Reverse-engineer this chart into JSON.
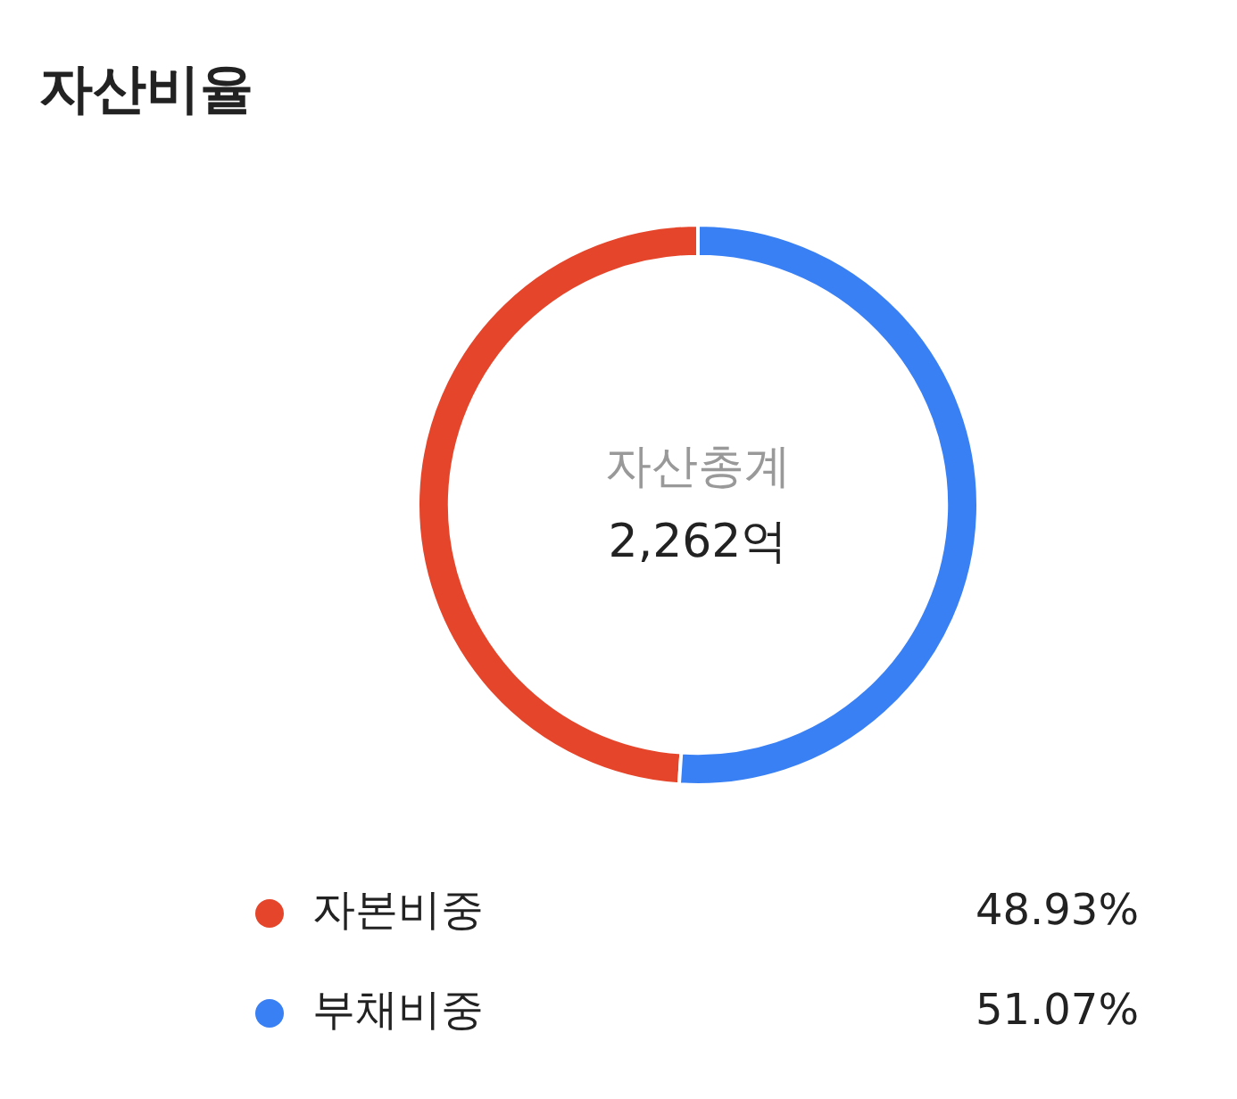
{
  "chart_data": {
    "type": "donut",
    "title": "자산비율",
    "categories": [
      "자본비중",
      "부채비중"
    ],
    "values": [
      48.93,
      51.07
    ],
    "colors": [
      "#e5462b",
      "#3a80f5"
    ],
    "value_labels": [
      "48.93%",
      "51.07%"
    ],
    "annotations": [
      "자산총계",
      "2,262억"
    ],
    "legend": "bottom"
  }
}
